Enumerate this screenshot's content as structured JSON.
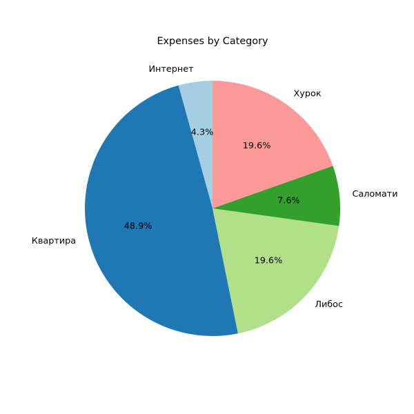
{
  "chart_data": {
    "type": "pie",
    "title": "Expenses by Category",
    "start_angle_deg": 90,
    "direction": "counterclockwise",
    "autopct_format": "1f",
    "slices": [
      {
        "label": "Интернет",
        "value": 4.3,
        "pct_label": "4.3%",
        "color": "#a6cee3"
      },
      {
        "label": "Квартира",
        "value": 48.9,
        "pct_label": "48.9%",
        "color": "#1f78b4"
      },
      {
        "label": "Либос",
        "value": 19.6,
        "pct_label": "19.6%",
        "color": "#b2df8a"
      },
      {
        "label": "Саломати",
        "value": 7.6,
        "pct_label": "7.6%",
        "color": "#33a02c"
      },
      {
        "label": "Хурок",
        "value": 19.6,
        "pct_label": "19.6%",
        "color": "#fb9a99"
      }
    ]
  }
}
